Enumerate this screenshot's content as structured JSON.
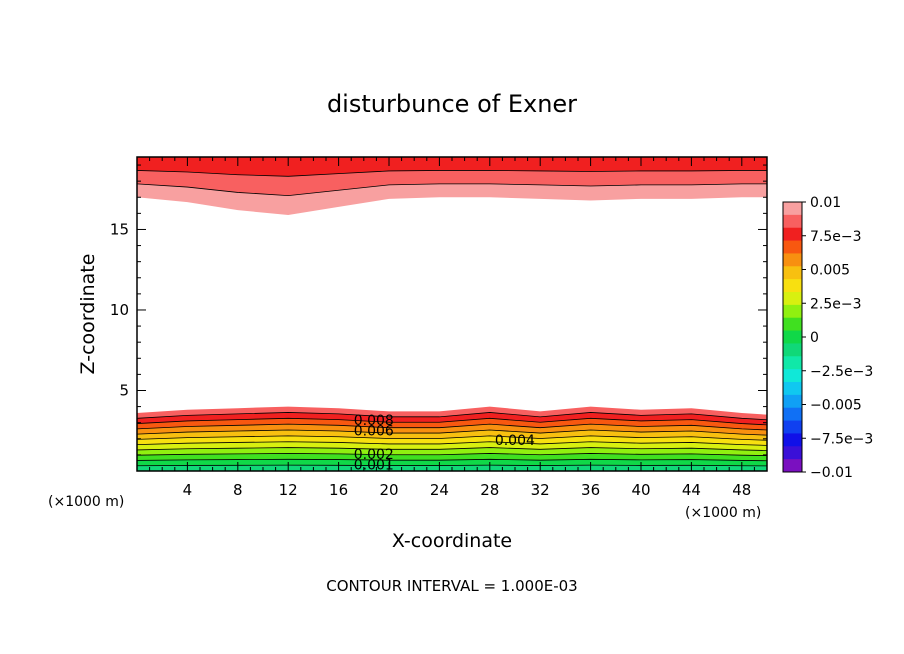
{
  "chart_data": {
    "type": "heatmap",
    "subtype": "filled-contour",
    "title": "disturbunce of Exner",
    "xlabel": "X-coordinate",
    "ylabel": "Z-coordinate",
    "x_unit_left": "(×1000 m)",
    "x_unit_right": "(×1000 m)",
    "footer": "CONTOUR INTERVAL = 1.000E-03",
    "xlim": [
      0,
      50
    ],
    "ylim": [
      0,
      19.5
    ],
    "x_ticks": [
      "4",
      "8",
      "12",
      "16",
      "20",
      "24",
      "28",
      "32",
      "36",
      "40",
      "44",
      "48"
    ],
    "y_ticks": [
      "5",
      "10",
      "15"
    ],
    "colorbar": {
      "range": [
        -0.01,
        0.01
      ],
      "labels": [
        "0.01",
        "7.5e−3",
        "0.005",
        "2.5e−3",
        "0",
        "−2.5e−3",
        "−0.005",
        "−7.5e−3",
        "−0.01"
      ],
      "levels": [
        {
          "value": -0.01,
          "color": "#7a10c0"
        },
        {
          "value": -0.009,
          "color": "#3a10d8"
        },
        {
          "value": -0.008,
          "color": "#1010e8"
        },
        {
          "value": -0.007,
          "color": "#1040f0"
        },
        {
          "value": -0.006,
          "color": "#1070f5"
        },
        {
          "value": -0.005,
          "color": "#10a0f5"
        },
        {
          "value": -0.004,
          "color": "#10c8f0"
        },
        {
          "value": -0.003,
          "color": "#10e8d8"
        },
        {
          "value": -0.002,
          "color": "#10e8a8"
        },
        {
          "value": -0.001,
          "color": "#10d878"
        },
        {
          "value": 0.0,
          "color": "#10d848"
        },
        {
          "value": 0.001,
          "color": "#40e020"
        },
        {
          "value": 0.002,
          "color": "#90f010"
        },
        {
          "value": 0.003,
          "color": "#d8f010"
        },
        {
          "value": 0.004,
          "color": "#f8e010"
        },
        {
          "value": 0.005,
          "color": "#f8c010"
        },
        {
          "value": 0.006,
          "color": "#f89010"
        },
        {
          "value": 0.007,
          "color": "#f85810"
        },
        {
          "value": 0.008,
          "color": "#f02020"
        },
        {
          "value": 0.009,
          "color": "#f86060"
        },
        {
          "value": 0.01,
          "color": "#f8a0a0"
        }
      ]
    },
    "contour_labels": [
      "0.008",
      "0.006",
      "0.004",
      "0.002",
      "0.001"
    ],
    "bottom_layer": {
      "x": [
        0,
        4,
        8,
        12,
        16,
        20,
        24,
        28,
        32,
        36,
        40,
        44,
        48,
        50
      ],
      "top_z": [
        3.6,
        3.8,
        3.9,
        4.0,
        3.9,
        3.7,
        3.7,
        4.0,
        3.7,
        4.0,
        3.8,
        3.9,
        3.6,
        3.5
      ]
    },
    "top_layer": {
      "x": [
        0,
        4,
        8,
        12,
        16,
        20,
        24,
        28,
        32,
        36,
        40,
        44,
        48,
        50
      ],
      "bottom_z": [
        17.0,
        16.7,
        16.2,
        15.9,
        16.4,
        16.9,
        17.0,
        17.0,
        16.9,
        16.8,
        16.9,
        16.9,
        17.0,
        17.0
      ]
    }
  }
}
